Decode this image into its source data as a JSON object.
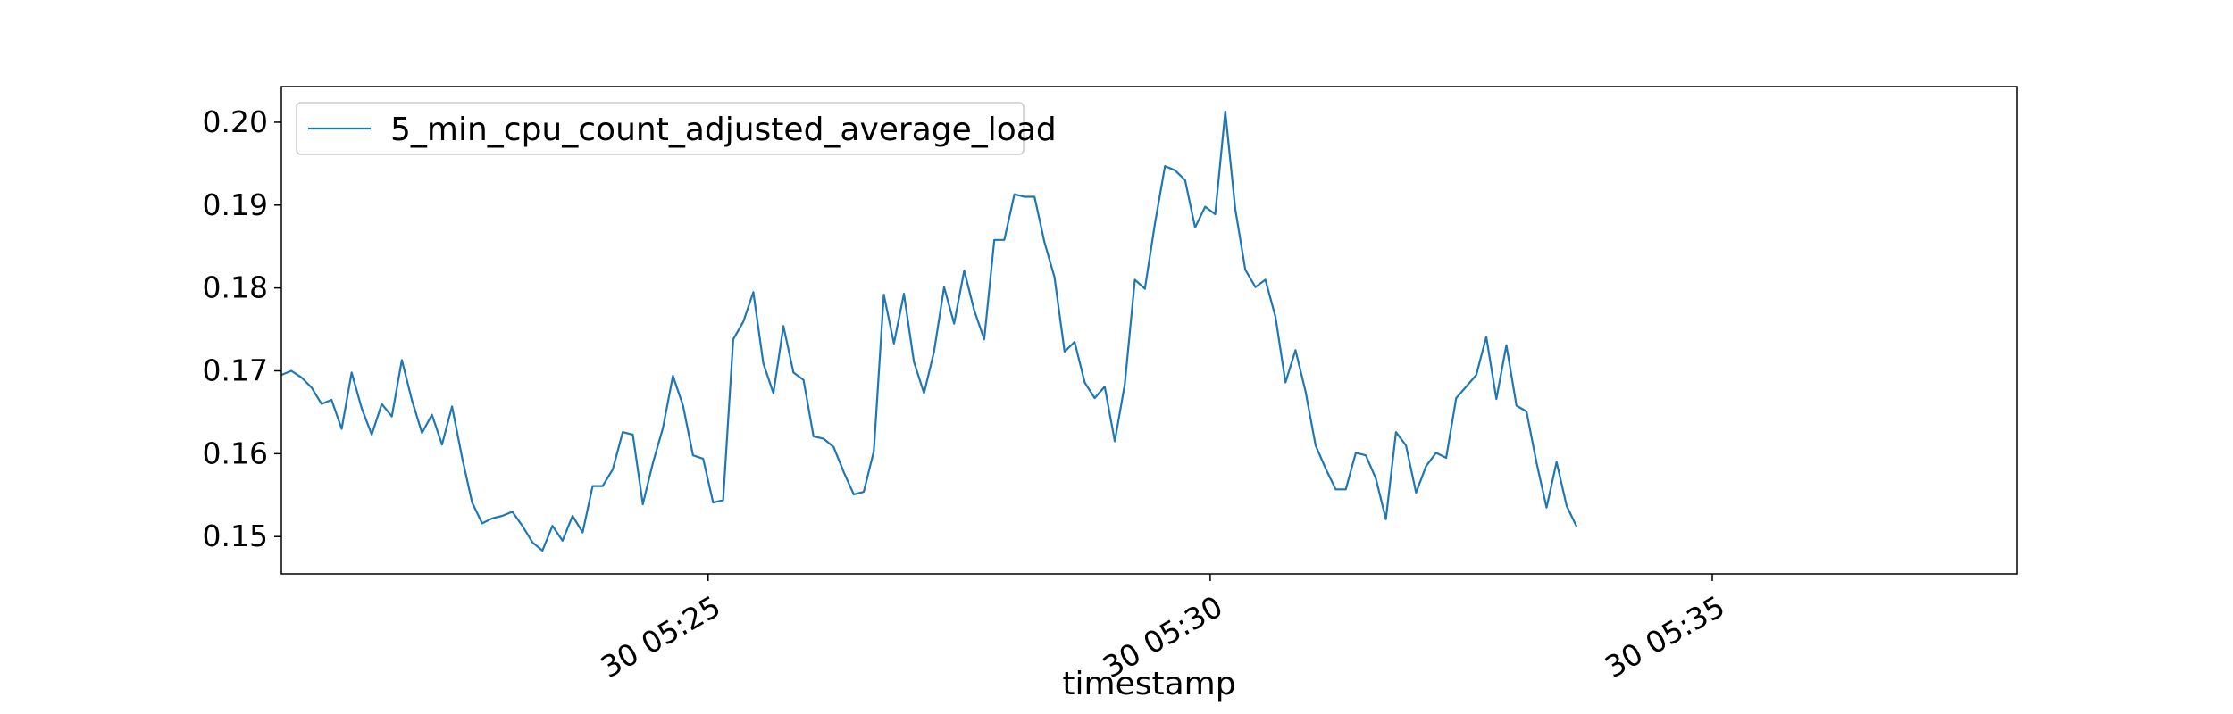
{
  "chart_data": {
    "type": "line",
    "xlabel": "timestamp",
    "ylabel": "",
    "x_start": "30 05:20:45",
    "x_step_seconds": 6,
    "xlim": [
      "30 05:20:45",
      "30 05:38:02"
    ],
    "x_ticks": [
      {
        "value": "30 05:25",
        "label": "30 05:25"
      },
      {
        "value": "30 05:30",
        "label": "30 05:30"
      },
      {
        "value": "30 05:35",
        "label": "30 05:35"
      }
    ],
    "ylim": [
      0.1455,
      0.2043
    ],
    "y_ticks": [
      {
        "value": 0.15,
        "label": "0.15"
      },
      {
        "value": 0.16,
        "label": "0.16"
      },
      {
        "value": 0.17,
        "label": "0.17"
      },
      {
        "value": 0.18,
        "label": "0.18"
      },
      {
        "value": 0.19,
        "label": "0.19"
      },
      {
        "value": 0.2,
        "label": "0.20"
      }
    ],
    "grid": false,
    "legend_position": "top-left",
    "series": [
      {
        "name": "5_min_cpu_count_adjusted_average_load",
        "color": "#1f77b4",
        "values": [
          0.1695,
          0.17,
          0.1692,
          0.168,
          0.166,
          0.1665,
          0.163,
          0.1698,
          0.1655,
          0.1623,
          0.166,
          0.1645,
          0.1713,
          0.1665,
          0.1625,
          0.1647,
          0.1611,
          0.1657,
          0.1595,
          0.1541,
          0.1516,
          0.1522,
          0.1525,
          0.153,
          0.1513,
          0.1493,
          0.1483,
          0.1513,
          0.1495,
          0.1525,
          0.1505,
          0.1561,
          0.1561,
          0.1581,
          0.1626,
          0.1623,
          0.1539,
          0.1589,
          0.1631,
          0.1694,
          0.1658,
          0.1598,
          0.1594,
          0.1541,
          0.1544,
          0.1738,
          0.1759,
          0.1795,
          0.1709,
          0.1673,
          0.1754,
          0.1698,
          0.1689,
          0.1621,
          0.1618,
          0.1608,
          0.1578,
          0.1551,
          0.1554,
          0.1603,
          0.1792,
          0.1733,
          0.1793,
          0.1711,
          0.1673,
          0.1723,
          0.1801,
          0.1757,
          0.1821,
          0.1773,
          0.1738,
          0.1858,
          0.1858,
          0.1913,
          0.191,
          0.191,
          0.1855,
          0.1813,
          0.1723,
          0.1735,
          0.1686,
          0.1667,
          0.1681,
          0.1615,
          0.1684,
          0.181,
          0.1799,
          0.1878,
          0.1947,
          0.1942,
          0.193,
          0.1873,
          0.1898,
          0.1889,
          0.2013,
          0.1895,
          0.1822,
          0.1801,
          0.181,
          0.1765,
          0.1686,
          0.1725,
          0.1675,
          0.161,
          0.1582,
          0.1557,
          0.1557,
          0.1601,
          0.1598,
          0.157,
          0.1521,
          0.1626,
          0.161,
          0.1553,
          0.1585,
          0.1601,
          0.1595,
          0.1667,
          0.1681,
          0.1695,
          0.1741,
          0.1666,
          0.1731,
          0.1658,
          0.1651,
          0.1589,
          0.1535,
          0.159,
          0.1537,
          0.1512
        ]
      }
    ]
  }
}
